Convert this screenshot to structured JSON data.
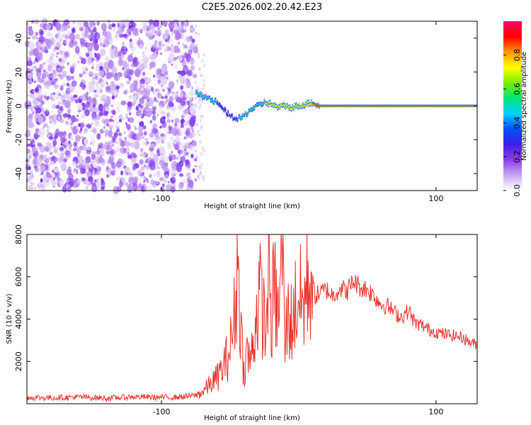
{
  "title": "C2E5.2026.002.20.42.E23",
  "chart_data": [
    {
      "type": "heatmap",
      "id": "spectrogram",
      "xlabel": "Height of straight line (km)",
      "ylabel": "Frequency (Hz)",
      "xlim": [
        -198,
        130
      ],
      "ylim": [
        -50,
        50
      ],
      "xticks": [
        -100,
        100
      ],
      "yticks": [
        -40,
        -20,
        0,
        20,
        40
      ],
      "colorbar": {
        "label": "Normalized spectral amplitude",
        "range": [
          0.0,
          1.0
        ],
        "ticks": [
          0.0,
          0.2,
          0.4,
          0.6,
          0.8
        ],
        "tick_labels": [
          "0.0",
          "0.2",
          "0.4",
          "0.6",
          "0.8"
        ],
        "colors": [
          "#ffffff",
          "#c8a8f0",
          "#8c3cf0",
          "#3c1ee6",
          "#0050ff",
          "#00d2ff",
          "#00e678",
          "#78f000",
          "#ffff00",
          "#ff9600",
          "#ff0000",
          "#ff0064"
        ]
      },
      "noise_region": {
        "x_start": -198,
        "x_end": -75,
        "level": [
          0.02,
          0.22
        ]
      },
      "ridge": {
        "x": [
          -75,
          -70,
          -65,
          -60,
          -55,
          -50,
          -45,
          -40,
          -35,
          -30,
          -25,
          -20,
          -15,
          -10,
          -5,
          0,
          5,
          10,
          15,
          20,
          40,
          60,
          80,
          100,
          120,
          130
        ],
        "freq": [
          8,
          6,
          4,
          2,
          -2,
          -6,
          -8,
          -6,
          -2,
          0,
          2,
          1,
          -1,
          0,
          -1,
          0,
          1,
          2,
          0,
          0,
          0,
          0,
          0,
          0,
          0,
          0
        ],
        "amplitude": [
          0.55,
          0.6,
          0.55,
          0.5,
          0.45,
          0.45,
          0.5,
          0.5,
          0.55,
          0.6,
          0.7,
          0.75,
          0.7,
          0.75,
          0.8,
          0.8,
          0.85,
          0.9,
          0.95,
          0.95,
          0.95,
          0.95,
          0.95,
          0.95,
          0.95,
          0.95
        ]
      }
    },
    {
      "type": "line",
      "id": "snr",
      "xlabel": "Height of straight line (km)",
      "ylabel": "SNR (10 * v/v)",
      "xlim": [
        -198,
        130
      ],
      "ylim": [
        0,
        8000
      ],
      "xticks": [
        -100,
        100
      ],
      "yticks": [
        2000,
        4000,
        6000,
        8000
      ],
      "series": [
        {
          "name": "SNR",
          "color": "#e8302a",
          "x": [
            -198,
            -180,
            -160,
            -140,
            -120,
            -100,
            -90,
            -80,
            -75,
            -70,
            -65,
            -60,
            -55,
            -50,
            -47,
            -44,
            -42,
            -40,
            -38,
            -35,
            -32,
            -29,
            -26,
            -24,
            -22,
            -20,
            -18,
            -15,
            -12,
            -10,
            -8,
            -5,
            -2,
            0,
            3,
            6,
            9,
            12,
            15,
            20,
            25,
            30,
            35,
            40,
            45,
            50,
            55,
            60,
            65,
            70,
            75,
            80,
            85,
            90,
            95,
            100,
            105,
            110,
            115,
            120,
            125,
            130
          ],
          "values": [
            300,
            280,
            320,
            260,
            330,
            300,
            310,
            350,
            400,
            550,
            900,
            1200,
            1700,
            2600,
            4000,
            6800,
            3500,
            1500,
            2400,
            2000,
            3500,
            5200,
            4500,
            3000,
            7200,
            3800,
            5600,
            4000,
            7500,
            2800,
            4200,
            3800,
            4800,
            5200,
            4500,
            5600,
            6000,
            5100,
            5200,
            5400,
            5100,
            5500,
            5300,
            5800,
            5500,
            5400,
            5100,
            4700,
            4600,
            4300,
            4100,
            4400,
            3800,
            3700,
            3500,
            3400,
            3300,
            3250,
            3200,
            3100,
            2900,
            2800
          ]
        }
      ]
    }
  ]
}
